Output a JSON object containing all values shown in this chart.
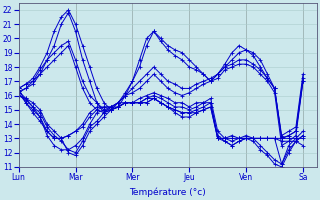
{
  "xlabel": "Température (°c)",
  "xlim": [
    0,
    5.25
  ],
  "ylim": [
    11,
    22.5
  ],
  "yticks": [
    11,
    12,
    13,
    14,
    15,
    16,
    17,
    18,
    19,
    20,
    21,
    22
  ],
  "xtick_labels": [
    "Lun",
    "Mar",
    "Mer",
    "Jeu",
    "Ven",
    "Sa"
  ],
  "xtick_positions": [
    0,
    1,
    2,
    3,
    4,
    5
  ],
  "line_color": "#0000cc",
  "bg_color": "#cce8ec",
  "grid_color": "#aacccc",
  "series": [
    [
      16.5,
      16.8,
      17.2,
      18.0,
      19.0,
      20.5,
      21.5,
      22.0,
      21.0,
      19.5,
      18.0,
      16.5,
      15.5,
      15.0,
      15.2,
      16.0,
      17.0,
      18.0,
      19.5,
      20.5,
      20.0,
      19.5,
      19.2,
      19.0,
      18.5,
      18.0,
      17.5,
      17.0,
      17.5,
      18.0,
      18.5,
      19.0,
      19.2,
      19.0,
      18.5,
      17.5,
      16.5,
      13.0,
      13.2,
      13.5,
      17.0
    ],
    [
      16.5,
      16.8,
      17.0,
      17.5,
      18.5,
      19.5,
      21.0,
      21.8,
      20.5,
      18.5,
      17.0,
      15.5,
      14.8,
      15.2,
      15.5,
      16.2,
      17.0,
      18.5,
      20.0,
      20.5,
      19.8,
      19.2,
      18.8,
      18.5,
      18.0,
      17.8,
      17.5,
      17.0,
      17.5,
      18.2,
      19.0,
      19.5,
      19.2,
      18.8,
      18.0,
      17.2,
      16.5,
      13.2,
      13.5,
      13.8,
      17.5
    ],
    [
      16.3,
      16.5,
      17.0,
      17.8,
      18.5,
      19.0,
      19.5,
      19.8,
      18.5,
      17.0,
      16.0,
      15.5,
      15.0,
      15.2,
      15.5,
      16.0,
      16.5,
      17.0,
      17.5,
      18.0,
      17.5,
      17.0,
      16.8,
      16.5,
      16.5,
      16.8,
      17.0,
      17.2,
      17.5,
      18.0,
      18.2,
      18.5,
      18.5,
      18.2,
      17.8,
      17.2,
      16.5,
      13.0,
      13.2,
      13.5,
      17.2
    ],
    [
      16.2,
      16.5,
      16.8,
      17.5,
      18.0,
      18.5,
      19.0,
      19.5,
      18.0,
      16.5,
      15.5,
      15.0,
      14.8,
      15.0,
      15.5,
      16.0,
      16.2,
      16.5,
      17.0,
      17.5,
      17.0,
      16.5,
      16.2,
      16.0,
      16.2,
      16.5,
      16.8,
      17.0,
      17.2,
      17.8,
      18.0,
      18.2,
      18.2,
      18.0,
      17.5,
      17.0,
      16.2,
      12.5,
      12.8,
      13.2,
      17.0
    ],
    [
      16.0,
      15.8,
      15.5,
      15.0,
      14.0,
      13.5,
      13.0,
      12.0,
      11.8,
      12.5,
      13.5,
      14.0,
      14.5,
      15.0,
      15.2,
      15.5,
      15.5,
      15.8,
      16.0,
      16.2,
      16.0,
      15.8,
      15.5,
      15.5,
      15.2,
      15.5,
      15.5,
      15.8,
      13.5,
      13.0,
      12.8,
      13.0,
      13.2,
      13.0,
      12.5,
      12.0,
      11.5,
      11.2,
      12.5,
      13.0,
      13.5
    ],
    [
      16.0,
      15.7,
      15.2,
      14.8,
      13.8,
      13.2,
      12.8,
      12.2,
      12.0,
      12.8,
      13.8,
      14.2,
      14.8,
      15.0,
      15.2,
      15.5,
      15.5,
      15.5,
      15.8,
      16.0,
      15.8,
      15.5,
      15.2,
      15.2,
      15.0,
      15.2,
      15.5,
      15.5,
      13.2,
      12.8,
      12.5,
      12.8,
      13.0,
      12.8,
      12.2,
      11.8,
      11.2,
      11.0,
      12.0,
      12.8,
      13.2
    ],
    [
      16.2,
      15.5,
      15.0,
      14.5,
      13.5,
      13.0,
      13.0,
      13.2,
      13.5,
      13.8,
      14.5,
      15.0,
      15.2,
      15.2,
      15.5,
      15.5,
      15.5,
      15.5,
      15.8,
      15.8,
      15.5,
      15.2,
      15.0,
      14.8,
      14.8,
      15.0,
      15.2,
      15.5,
      13.0,
      13.0,
      13.2,
      13.0,
      13.0,
      13.0,
      13.0,
      13.0,
      13.0,
      13.0,
      13.0,
      13.0,
      13.0
    ],
    [
      16.5,
      15.5,
      14.8,
      14.2,
      13.5,
      13.0,
      13.0,
      13.2,
      13.5,
      14.0,
      14.8,
      15.2,
      15.2,
      15.2,
      15.2,
      15.5,
      15.5,
      15.5,
      15.5,
      15.8,
      15.5,
      15.2,
      15.0,
      14.8,
      14.8,
      14.8,
      15.0,
      15.2,
      13.0,
      13.0,
      13.0,
      13.0,
      13.0,
      13.0,
      13.0,
      13.0,
      13.0,
      12.8,
      12.8,
      12.8,
      12.5
    ],
    [
      16.3,
      15.8,
      15.2,
      14.5,
      13.2,
      12.5,
      12.2,
      12.2,
      12.5,
      13.0,
      14.0,
      14.8,
      15.0,
      15.0,
      15.2,
      15.5,
      15.5,
      15.5,
      15.5,
      15.8,
      15.5,
      15.2,
      14.8,
      14.5,
      14.5,
      14.8,
      15.0,
      15.2,
      13.0,
      12.8,
      12.5,
      12.8,
      13.0,
      13.0,
      13.0,
      13.0,
      13.0,
      11.2,
      12.2,
      12.8,
      13.2
    ]
  ],
  "n_per_day": 8,
  "n_days": 5,
  "extra_sa": 1
}
